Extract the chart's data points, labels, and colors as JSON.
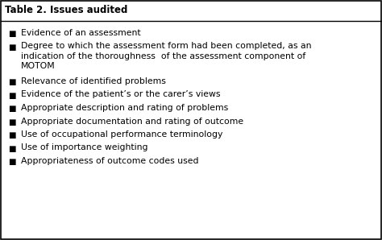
{
  "title": "Table 2. Issues audited",
  "items": [
    [
      "Evidence of an assessment"
    ],
    [
      "Degree to which the assessment form had been completed, as an",
      "indication of the thoroughness  of the assessment component of",
      "MOTOM"
    ],
    [
      "Relevance of identified problems"
    ],
    [
      "Evidence of the patient’s or the carer’s views"
    ],
    [
      "Appropriate description and rating of problems"
    ],
    [
      "Appropriate documentation and rating of outcome"
    ],
    [
      "Use of occupational performance terminology"
    ],
    [
      "Use of importance weighting"
    ],
    [
      "Appropriateness of outcome codes used"
    ]
  ],
  "background_color": "#ffffff",
  "border_color": "#000000",
  "text_color": "#000000",
  "title_fontsize": 8.5,
  "item_fontsize": 7.8,
  "bullet_char": "■",
  "fig_width": 4.74,
  "fig_height": 2.98,
  "dpi": 100
}
